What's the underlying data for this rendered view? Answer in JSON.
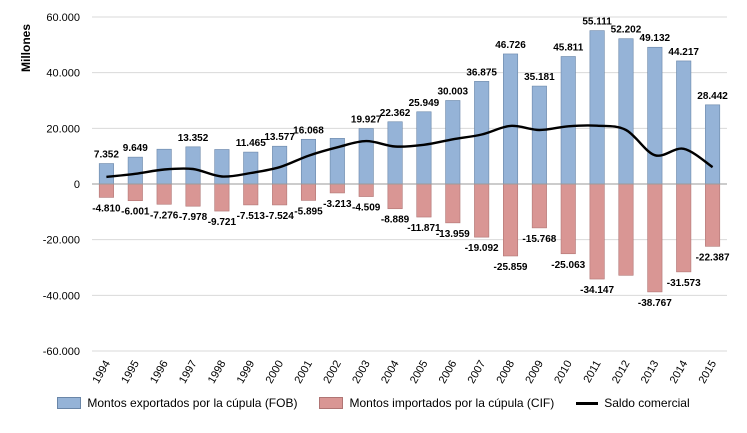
{
  "chart_data": {
    "type": "bar",
    "ylabel": "Millones",
    "ylim": [
      -60000,
      60000
    ],
    "yticks": [
      -60000,
      -40000,
      -20000,
      0,
      20000,
      40000,
      60000
    ],
    "ytick_labels": [
      "-60.000",
      "-40.000",
      "-20.000",
      "0",
      "20.000",
      "40.000",
      "60.000"
    ],
    "categories": [
      "1994",
      "1995",
      "1996",
      "1997",
      "1998",
      "1999",
      "2000",
      "2001",
      "2002",
      "2003",
      "2004",
      "2005",
      "2006",
      "2007",
      "2008",
      "2009",
      "2010",
      "2011",
      "2012",
      "2013",
      "2014",
      "2015"
    ],
    "series": [
      {
        "name": "Montos exportados por la cúpula (FOB)",
        "kind": "bar",
        "color": "#95b3d7",
        "values": [
          7352,
          9649,
          12500,
          13352,
          12400,
          11465,
          13577,
          16068,
          16400,
          19927,
          22362,
          25949,
          30003,
          36875,
          46726,
          35181,
          45811,
          55111,
          52202,
          49132,
          44217,
          28442
        ],
        "labels": [
          "7.352",
          "9.649",
          "",
          "13.352",
          "",
          "11.465",
          "13.577",
          "16.068",
          "",
          "19.927",
          "22.362",
          "25.949",
          "30.003",
          "36.875",
          "46.726",
          "35.181",
          "45.811",
          "55.111",
          "52.202",
          "49.132",
          "44.217",
          "28.442"
        ]
      },
      {
        "name": "Montos importados por la cúpula (CIF)",
        "kind": "bar",
        "color": "#d99694",
        "values": [
          -4810,
          -6001,
          -7276,
          -7978,
          -9721,
          -7513,
          -7524,
          -5895,
          -3213,
          -4509,
          -8889,
          -11871,
          -13959,
          -19092,
          -25859,
          -15768,
          -25063,
          -34147,
          -32800,
          -38767,
          -31573,
          -22387
        ],
        "labels": [
          "-4.810",
          "-6.001",
          "-7.276",
          "-7.978",
          "-9.721",
          "-7.513",
          "-7.524",
          "-5.895",
          "-3.213",
          "-4.509",
          "-8.889",
          "-11.871",
          "-13.959",
          "-19.092",
          "-25.859",
          "-15.768",
          "-25.063",
          "-34.147",
          "",
          "-38.767",
          "-31.573",
          "-22.387"
        ]
      },
      {
        "name": "Saldo comercial",
        "kind": "line",
        "color": "#000000",
        "values": [
          2542,
          3648,
          5224,
          5374,
          2679,
          3952,
          6053,
          10173,
          13187,
          15418,
          13473,
          14078,
          16044,
          17783,
          20867,
          19413,
          20748,
          20964,
          19402,
          10365,
          12644,
          6055
        ]
      }
    ]
  }
}
